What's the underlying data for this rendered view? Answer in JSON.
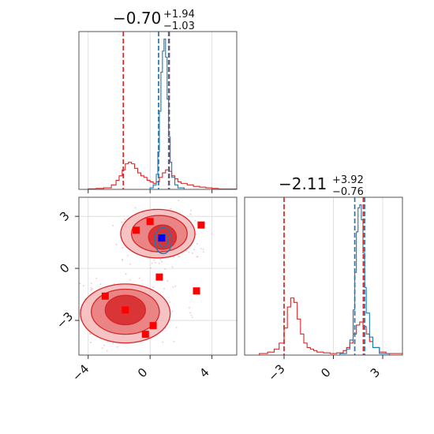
{
  "colors": {
    "red": "#d62728",
    "blue": "#1f77b4",
    "red_fill_dark": "#d62728",
    "red_fill_mid": "#e8797a",
    "red_fill_light": "#f3b9b9",
    "marker_red": "#ff0000",
    "marker_blue": "#0000ff",
    "grid": "#d9d9d9"
  },
  "panels": {
    "top": {
      "title_main": "−0.70",
      "title_sup": "+1.94",
      "title_sub": "−1.03"
    },
    "right": {
      "title_main": "−2.11",
      "title_sup": "+3.92",
      "title_sub": "−0.76"
    }
  },
  "chart_data": [
    {
      "type": "line",
      "panel": "marginal-x",
      "xlim": [
        -4.6,
        5.6
      ],
      "xticks": [
        -4,
        0,
        4
      ],
      "xtick_labels": [
        "−4",
        "0",
        "4"
      ],
      "series": [
        {
          "color": "red",
          "x": [
            -4.6,
            -4.0,
            -3.5,
            -3.0,
            -2.5,
            -2.2,
            -2.0,
            -1.8,
            -1.6,
            -1.4,
            -1.2,
            -1.0,
            -0.8,
            -0.6,
            -0.4,
            -0.2,
            0.0,
            0.2,
            0.4,
            0.6,
            0.8,
            1.0,
            1.2,
            1.4,
            1.6,
            1.8,
            2.0,
            2.4,
            2.8,
            3.2,
            3.6,
            4.0,
            4.4,
            5.6
          ],
          "y": [
            0.0,
            0.004,
            0.006,
            0.01,
            0.03,
            0.06,
            0.09,
            0.13,
            0.17,
            0.18,
            0.17,
            0.14,
            0.11,
            0.09,
            0.08,
            0.06,
            0.05,
            0.04,
            0.05,
            0.08,
            0.11,
            0.13,
            0.12,
            0.09,
            0.07,
            0.05,
            0.04,
            0.03,
            0.02,
            0.015,
            0.01,
            0.006,
            0.003,
            0.0
          ]
        },
        {
          "color": "blue",
          "x": [
            -0.2,
            0.0,
            0.2,
            0.4,
            0.5,
            0.6,
            0.7,
            0.8,
            0.9,
            1.0,
            1.1,
            1.2,
            1.3,
            1.4,
            1.6,
            1.8,
            2.2
          ],
          "y": [
            0.0,
            0.01,
            0.03,
            0.1,
            0.25,
            0.52,
            0.78,
            0.92,
            1.0,
            0.88,
            0.6,
            0.35,
            0.18,
            0.08,
            0.03,
            0.01,
            0.0
          ]
        }
      ],
      "vlines": [
        {
          "color": "red",
          "x": -1.73
        },
        {
          "color": "red",
          "x": 1.24
        },
        {
          "color": "blue",
          "x": 0.55
        },
        {
          "color": "blue",
          "x": 1.2
        }
      ],
      "ylim": [
        0,
        1.05
      ]
    },
    {
      "type": "line",
      "panel": "marginal-y",
      "xlim": [
        -5.4,
        4.2
      ],
      "xticks": [
        -3,
        0,
        3
      ],
      "xtick_labels": [
        "−3",
        "0",
        "3"
      ],
      "series": [
        {
          "color": "red",
          "x": [
            -5.4,
            -4.5,
            -4.0,
            -3.6,
            -3.3,
            -3.0,
            -2.8,
            -2.6,
            -2.4,
            -2.2,
            -2.0,
            -1.8,
            -1.6,
            -1.4,
            -1.2,
            -1.0,
            -0.6,
            -0.2,
            0.2,
            0.6,
            0.8,
            1.0,
            1.2,
            1.4,
            1.6,
            1.8,
            2.0,
            2.2,
            2.4,
            2.8,
            3.2,
            4.2
          ],
          "y": [
            0.0,
            0.01,
            0.02,
            0.04,
            0.08,
            0.18,
            0.32,
            0.38,
            0.35,
            0.24,
            0.14,
            0.08,
            0.05,
            0.04,
            0.03,
            0.02,
            0.015,
            0.01,
            0.015,
            0.03,
            0.05,
            0.08,
            0.14,
            0.2,
            0.22,
            0.19,
            0.14,
            0.09,
            0.05,
            0.02,
            0.01,
            0.0
          ]
        },
        {
          "color": "blue",
          "x": [
            0.0,
            0.4,
            0.8,
            1.0,
            1.2,
            1.3,
            1.4,
            1.5,
            1.6,
            1.7,
            1.8,
            1.9,
            2.0,
            2.2,
            2.4,
            2.8,
            3.4
          ],
          "y": [
            0.0,
            0.01,
            0.04,
            0.1,
            0.3,
            0.55,
            0.82,
            0.98,
            1.0,
            0.9,
            0.68,
            0.45,
            0.28,
            0.12,
            0.05,
            0.01,
            0.0
          ]
        }
      ],
      "vlines": [
        {
          "color": "red",
          "x": -3.0
        },
        {
          "color": "red",
          "x": 1.82
        },
        {
          "color": "blue",
          "x": 1.3
        },
        {
          "color": "blue",
          "x": 1.9
        }
      ],
      "ylim": [
        0,
        1.05
      ]
    },
    {
      "type": "scatter",
      "panel": "joint",
      "xlim": [
        -4.6,
        5.6
      ],
      "ylim": [
        -5.0,
        4.1
      ],
      "xticks": [
        -4,
        0,
        4
      ],
      "xtick_labels": [
        "−4",
        "0",
        "4"
      ],
      "yticks": [
        -3,
        0,
        3
      ],
      "ytick_labels": [
        "−3",
        "0",
        "3"
      ],
      "red_contours": [
        {
          "level": "outer",
          "blobs": [
            {
              "cx": 0.5,
              "cy": 2.0,
              "rx": 2.4,
              "ry": 1.4
            },
            {
              "cx": -1.6,
              "cy": -2.6,
              "rx": 2.9,
              "ry": 1.7
            }
          ]
        },
        {
          "level": "mid",
          "blobs": [
            {
              "cx": 0.6,
              "cy": 2.0,
              "rx": 1.8,
              "ry": 1.05
            },
            {
              "cx": -1.6,
              "cy": -2.5,
              "rx": 2.2,
              "ry": 1.3
            }
          ]
        },
        {
          "level": "inner",
          "blobs": [
            {
              "cx": 0.8,
              "cy": 1.8,
              "rx": 0.9,
              "ry": 0.7
            },
            {
              "cx": -1.6,
              "cy": -2.4,
              "rx": 1.3,
              "ry": 0.85
            }
          ]
        }
      ],
      "blue_contours": [
        {
          "cx": 0.85,
          "cy": 1.6,
          "rx": 0.55,
          "ry": 0.75
        },
        {
          "cx": 0.85,
          "cy": 1.6,
          "rx": 0.3,
          "ry": 0.4
        }
      ],
      "red_markers": [
        {
          "x": 0.0,
          "y": 2.7
        },
        {
          "x": -0.9,
          "y": 2.2
        },
        {
          "x": 3.3,
          "y": 2.5
        },
        {
          "x": 0.6,
          "y": -0.5
        },
        {
          "x": 3.0,
          "y": -1.3
        },
        {
          "x": -2.9,
          "y": -1.6
        },
        {
          "x": -1.6,
          "y": -2.4
        },
        {
          "x": 0.2,
          "y": -3.3
        },
        {
          "x": -0.3,
          "y": -3.8
        }
      ],
      "blue_markers": [
        {
          "x": 0.75,
          "y": 1.75
        }
      ]
    }
  ]
}
